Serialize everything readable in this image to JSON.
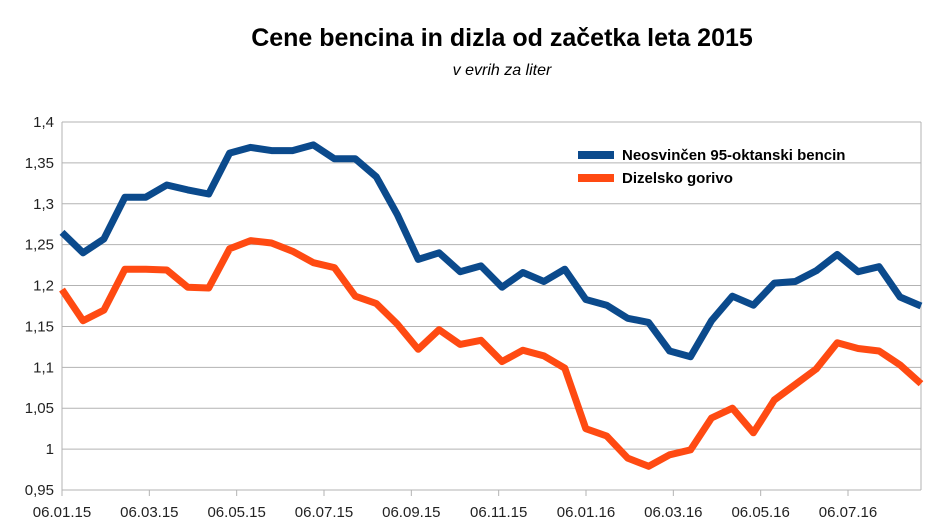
{
  "chart_data": {
    "type": "line",
    "title": "Cene bencina in dizla od začetka leta 2015",
    "subtitle": "v evrih za liter",
    "xlabel": "",
    "ylabel": "",
    "x_tick_labels": [
      "06.01.15",
      "06.03.15",
      "06.05.15",
      "06.07.15",
      "06.09.15",
      "06.11.15",
      "06.01.16",
      "06.03.16",
      "06.05.16",
      "06.07.16"
    ],
    "y_tick_labels": [
      "0,95",
      "1",
      "1,05",
      "1,1",
      "1,15",
      "1,2",
      "1,25",
      "1,3",
      "1,35",
      "1,4"
    ],
    "ylim": [
      0.95,
      1.4
    ],
    "grid": true,
    "legend_position": "top-right",
    "series": [
      {
        "name": "Neosvinčen 95-oktanski bencin",
        "color": "#0b4a8c",
        "values": [
          1.265,
          1.24,
          1.257,
          1.308,
          1.308,
          1.323,
          1.317,
          1.312,
          1.362,
          1.369,
          1.365,
          1.365,
          1.372,
          1.355,
          1.355,
          1.333,
          1.287,
          1.232,
          1.24,
          1.217,
          1.224,
          1.198,
          1.216,
          1.205,
          1.22,
          1.183,
          1.176,
          1.16,
          1.155,
          1.12,
          1.113,
          1.157,
          1.187,
          1.176,
          1.203,
          1.205,
          1.218,
          1.238,
          1.217,
          1.223,
          1.186,
          1.175
        ]
      },
      {
        "name": "Dizelsko gorivo",
        "color": "#ff4a12",
        "values": [
          1.195,
          1.157,
          1.17,
          1.22,
          1.22,
          1.219,
          1.198,
          1.197,
          1.245,
          1.255,
          1.252,
          1.242,
          1.228,
          1.222,
          1.187,
          1.178,
          1.153,
          1.122,
          1.146,
          1.128,
          1.133,
          1.107,
          1.121,
          1.114,
          1.099,
          1.025,
          1.016,
          0.989,
          0.979,
          0.993,
          0.999,
          1.038,
          1.05,
          1.02,
          1.06,
          1.079,
          1.098,
          1.13,
          1.123,
          1.12,
          1.103,
          1.08
        ]
      }
    ]
  }
}
